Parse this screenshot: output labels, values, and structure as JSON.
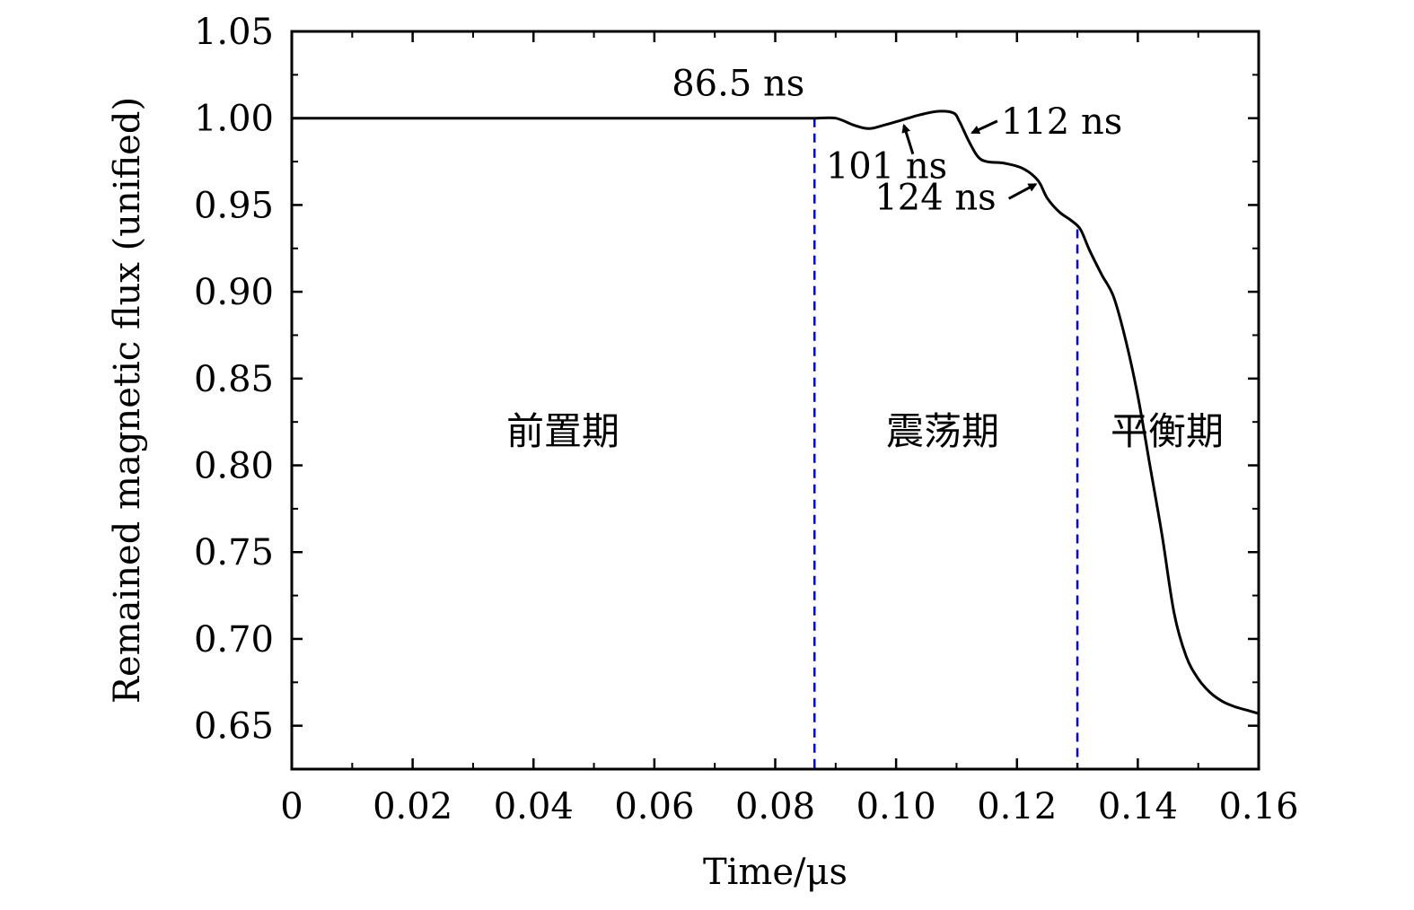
{
  "chart_data": {
    "type": "line",
    "title": "",
    "xlabel": "Time/μs",
    "ylabel": "Remained magnetic flux (unified)",
    "xlim": [
      0,
      0.16
    ],
    "ylim": [
      0.625,
      1.05
    ],
    "x_ticks": [
      0,
      0.02,
      0.04,
      0.06,
      0.08,
      0.1,
      0.12,
      0.14,
      0.16
    ],
    "x_tick_labels": [
      "0",
      "0.02",
      "0.04",
      "0.06",
      "0.08",
      "0.10",
      "0.12",
      "0.14",
      "0.16"
    ],
    "y_ticks": [
      0.65,
      0.7,
      0.75,
      0.8,
      0.85,
      0.9,
      0.95,
      1.0,
      1.05
    ],
    "y_tick_labels": [
      "0.65",
      "0.70",
      "0.75",
      "0.80",
      "0.85",
      "0.90",
      "0.95",
      "1.00",
      "1.05"
    ],
    "grid": false,
    "line_color": "#000000",
    "divider_color": "#0000cc",
    "series": [
      {
        "x": [
          0,
          0.02,
          0.04,
          0.06,
          0.08,
          0.0865,
          0.09,
          0.093,
          0.0955,
          0.098,
          0.101,
          0.104,
          0.107,
          0.1095,
          0.1105,
          0.112,
          0.1135,
          0.115,
          0.118,
          0.121,
          0.1235,
          0.125,
          0.127,
          0.129,
          0.1305,
          0.132,
          0.134,
          0.136,
          0.138,
          0.14,
          0.142,
          0.144,
          0.146,
          0.148,
          0.15,
          0.152,
          0.154,
          0.156,
          0.158,
          0.16
        ],
        "y": [
          1.0,
          1.0,
          1.0,
          1.0,
          1.0,
          1.0,
          1.0,
          0.996,
          0.994,
          0.996,
          0.999,
          1.002,
          1.004,
          1.003,
          0.998,
          0.987,
          0.978,
          0.975,
          0.974,
          0.971,
          0.964,
          0.954,
          0.946,
          0.941,
          0.936,
          0.924,
          0.91,
          0.897,
          0.872,
          0.84,
          0.8,
          0.76,
          0.715,
          0.69,
          0.677,
          0.669,
          0.664,
          0.661,
          0.659,
          0.657
        ]
      }
    ],
    "dividers": [
      0.0865,
      0.13
    ],
    "annotations": [
      {
        "text": "86.5 ns",
        "x": 0.0865,
        "y": 1.0
      },
      {
        "text": "101 ns",
        "x": 0.101,
        "y": 0.999
      },
      {
        "text": "112 ns",
        "x": 0.112,
        "y": 0.987
      },
      {
        "text": "124 ns",
        "x": 0.124,
        "y": 0.963
      }
    ],
    "phases": [
      {
        "label": "前置期",
        "x_range": [
          0,
          0.0865
        ]
      },
      {
        "label": "震荡期",
        "x_range": [
          0.0865,
          0.13
        ]
      },
      {
        "label": "平衡期",
        "x_range": [
          0.13,
          0.16
        ]
      }
    ]
  }
}
